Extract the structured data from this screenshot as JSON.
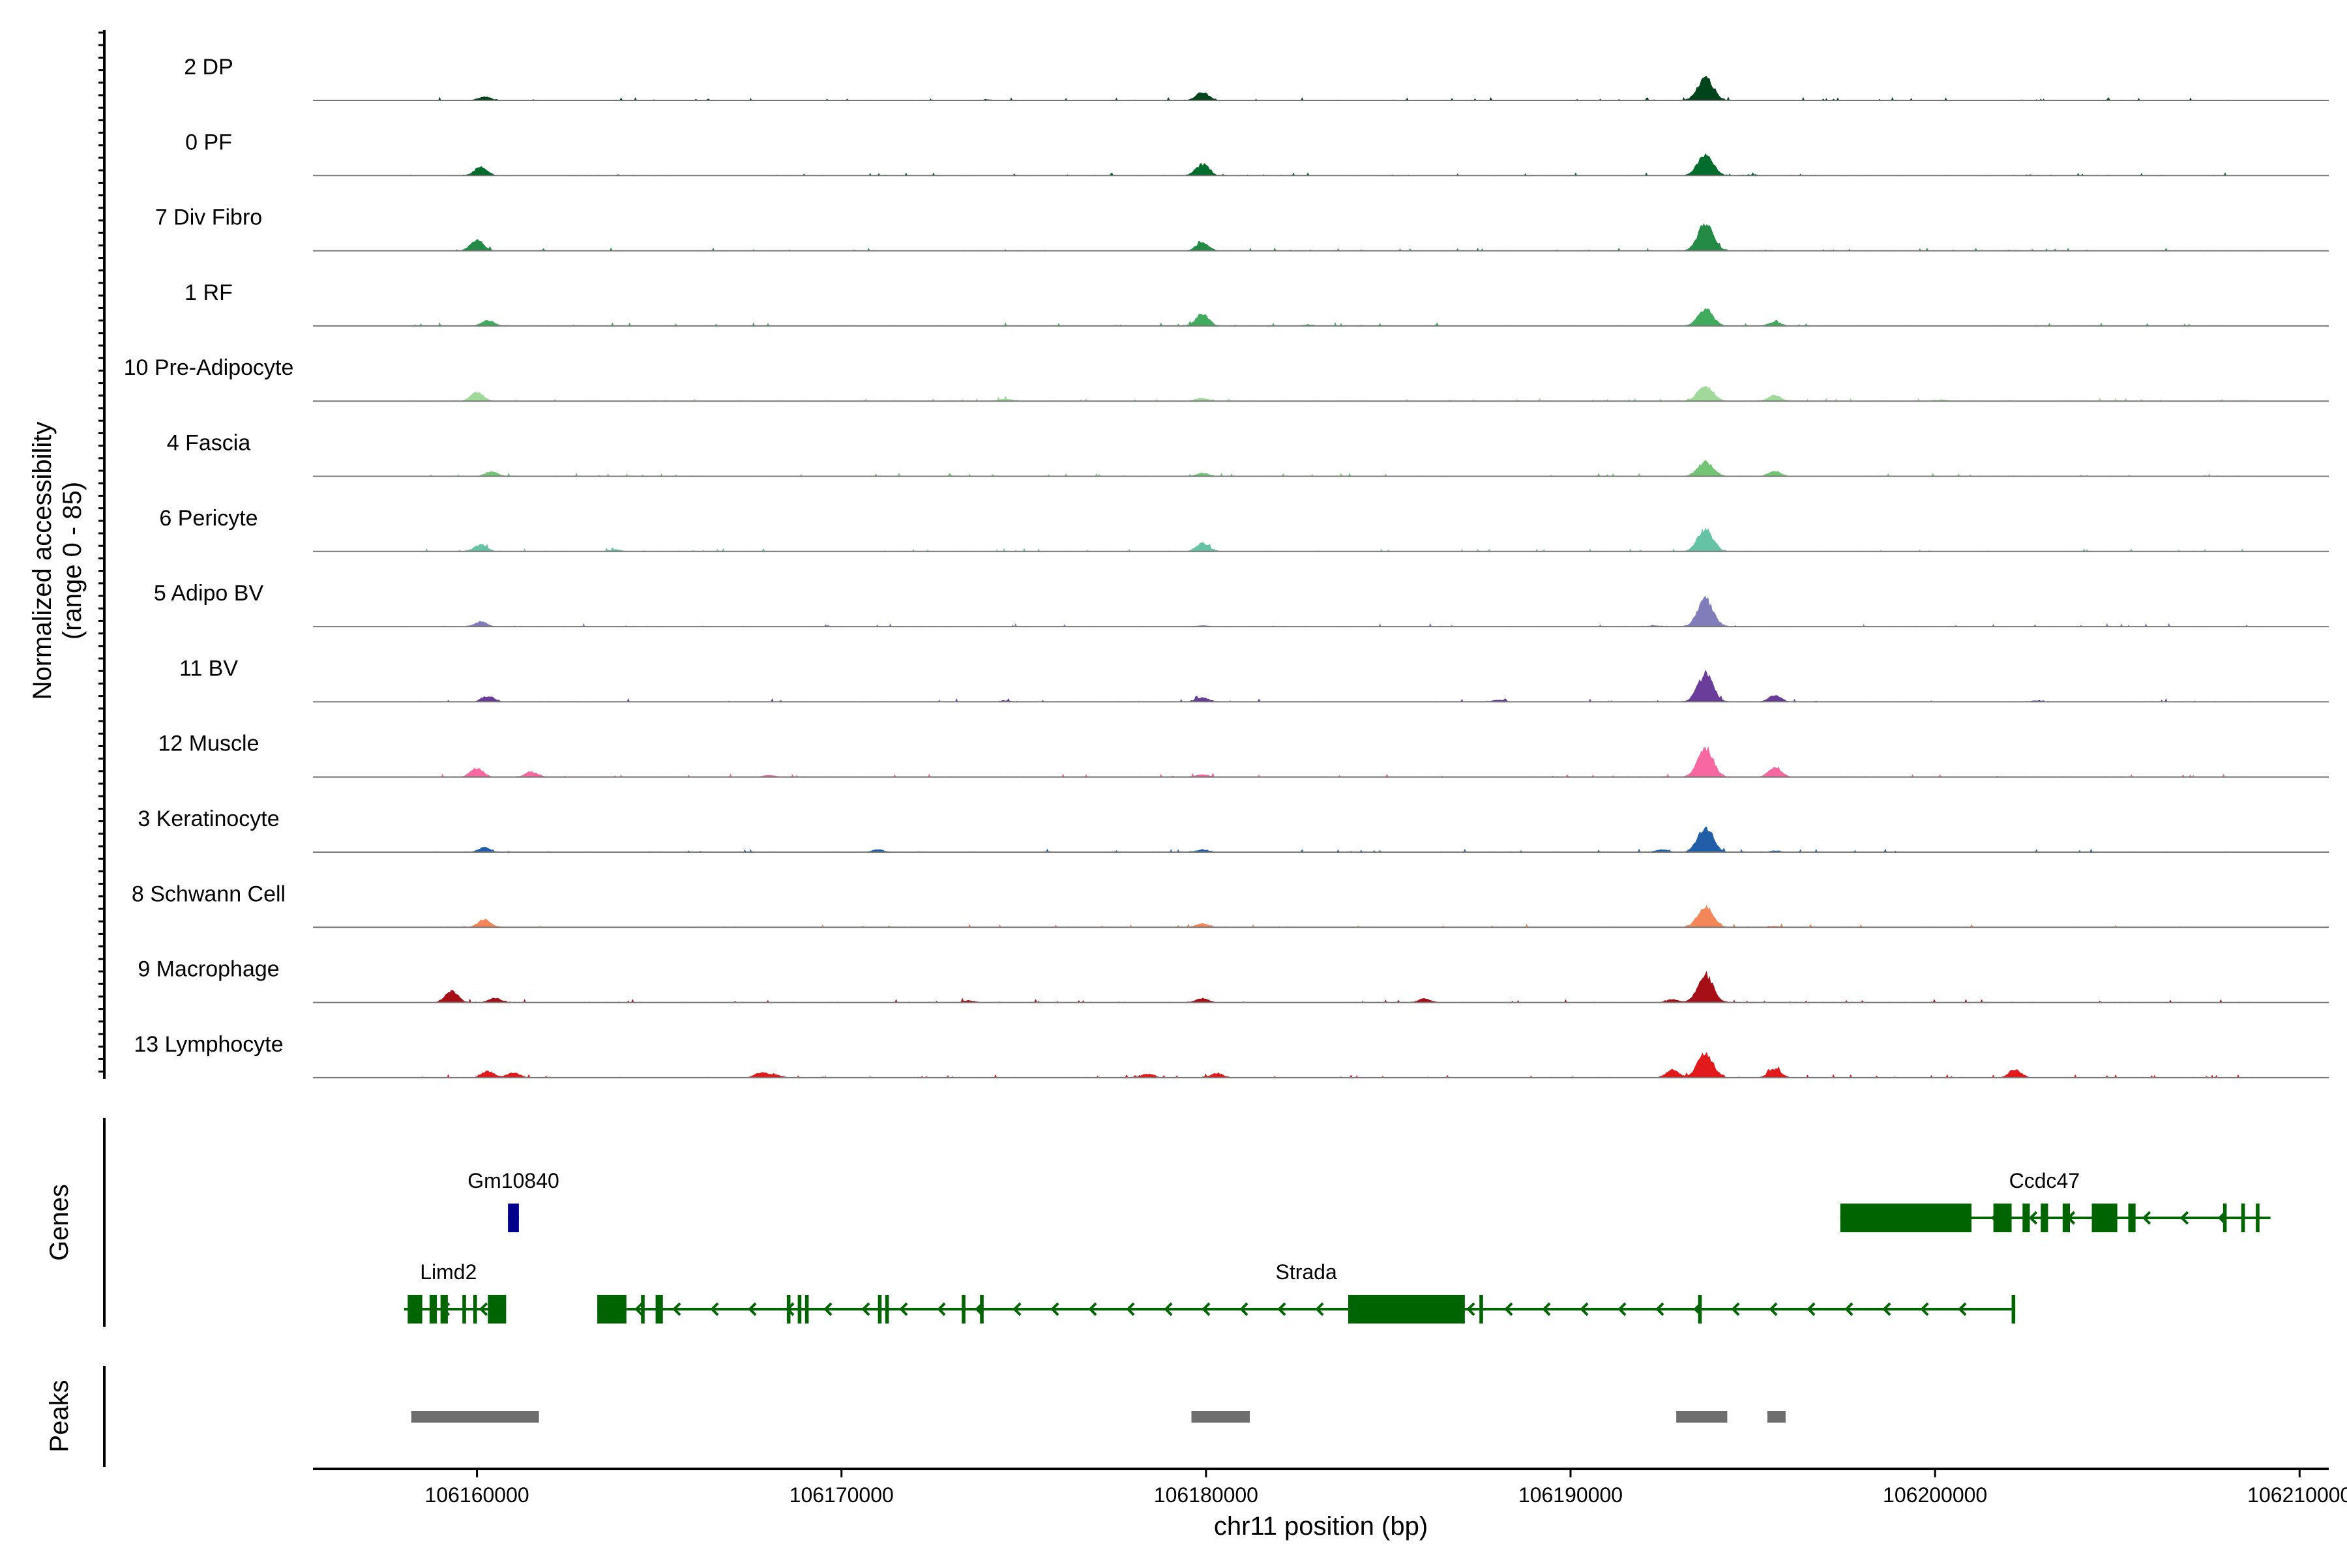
{
  "chart_data": {
    "type": "area",
    "title": "",
    "ylabel_line1": "Normalized accessibility",
    "ylabel_line2": "(range 0 - 85)",
    "ylim": [
      0,
      85
    ],
    "genes_label": "Genes",
    "peaks_label": "Peaks",
    "xlabel": "chr11 position (bp)",
    "xlim": [
      106155500,
      106210800
    ],
    "x_ticks": [
      106160000,
      106170000,
      106180000,
      106190000,
      106200000,
      106210000
    ],
    "x_tick_labels": [
      "106160000",
      "106170000",
      "106180000",
      "106190000",
      "106200000",
      "106210000"
    ],
    "series": [
      {
        "name": "2 DP",
        "color": "#00441b",
        "peaks": [
          [
            106160200,
            6
          ],
          [
            106179900,
            13
          ],
          [
            106193700,
            36
          ],
          [
            106166000,
            1
          ],
          [
            106174000,
            1.5
          ],
          [
            106185000,
            1
          ]
        ]
      },
      {
        "name": "0 PF",
        "color": "#006d2c",
        "peaks": [
          [
            106160100,
            13
          ],
          [
            106179900,
            18
          ],
          [
            106193700,
            34
          ],
          [
            106195000,
            1.5
          ],
          [
            106202500,
            1
          ]
        ]
      },
      {
        "name": "7 Div Fibro",
        "color": "#238b45",
        "peaks": [
          [
            106160000,
            18
          ],
          [
            106179900,
            13
          ],
          [
            106193700,
            42
          ],
          [
            106195300,
            1
          ],
          [
            106202000,
            1
          ]
        ]
      },
      {
        "name": "1 RF",
        "color": "#41ab5d",
        "peaks": [
          [
            106160300,
            9
          ],
          [
            106179900,
            19
          ],
          [
            106193700,
            26
          ],
          [
            106195600,
            6
          ],
          [
            106182800,
            2
          ]
        ]
      },
      {
        "name": "10 Pre-Adipocyte",
        "color": "#a1d99b",
        "peaks": [
          [
            106160000,
            14
          ],
          [
            106179900,
            5
          ],
          [
            106193700,
            24
          ],
          [
            106195600,
            9
          ],
          [
            106174500,
            4
          ],
          [
            106200200,
            2
          ]
        ]
      },
      {
        "name": "4 Fascia",
        "color": "#74c476",
        "peaks": [
          [
            106160400,
            8
          ],
          [
            106179900,
            5
          ],
          [
            106193700,
            23
          ],
          [
            106195600,
            8
          ]
        ]
      },
      {
        "name": "6 Pericyte",
        "color": "#66c2a4",
        "peaks": [
          [
            106160100,
            11
          ],
          [
            106179900,
            13
          ],
          [
            106193700,
            34
          ],
          [
            106163800,
            3
          ]
        ]
      },
      {
        "name": "5 Adipo BV",
        "color": "#807dba",
        "peaks": [
          [
            106160100,
            8
          ],
          [
            106179900,
            2
          ],
          [
            106193700,
            43
          ],
          [
            106192300,
            2
          ]
        ]
      },
      {
        "name": "11 BV",
        "color": "#6a3d9a",
        "peaks": [
          [
            106160300,
            9
          ],
          [
            106179900,
            7
          ],
          [
            106193700,
            43
          ],
          [
            106195600,
            10
          ],
          [
            106188000,
            3
          ],
          [
            106174500,
            2
          ],
          [
            106202800,
            2
          ]
        ]
      },
      {
        "name": "12 Muscle",
        "color": "#f768a1",
        "peaks": [
          [
            106160000,
            14
          ],
          [
            106161500,
            8
          ],
          [
            106179900,
            4
          ],
          [
            106193700,
            46
          ],
          [
            106195600,
            15
          ],
          [
            106168000,
            3
          ]
        ]
      },
      {
        "name": "3 Keratinocyte",
        "color": "#225ea8",
        "peaks": [
          [
            106160200,
            7
          ],
          [
            106171000,
            4
          ],
          [
            106179900,
            4
          ],
          [
            106193700,
            39
          ],
          [
            106192500,
            4
          ],
          [
            106195600,
            2
          ]
        ]
      },
      {
        "name": "8 Schwann Cell",
        "color": "#f4875a",
        "peaks": [
          [
            106160200,
            12
          ],
          [
            106179900,
            6
          ],
          [
            106193700,
            34
          ],
          [
            106195600,
            2
          ]
        ]
      },
      {
        "name": "9 Macrophage",
        "color": "#a50f15",
        "peaks": [
          [
            106159300,
            18
          ],
          [
            106160500,
            7
          ],
          [
            106179900,
            7
          ],
          [
            106193700,
            43
          ],
          [
            106186000,
            6
          ],
          [
            106192800,
            5
          ],
          [
            106173500,
            3
          ]
        ]
      },
      {
        "name": "13 Lymphocyte",
        "color": "#e31a1c",
        "peaks": [
          [
            106160300,
            10
          ],
          [
            106161000,
            8
          ],
          [
            106167800,
            8
          ],
          [
            106193700,
            38
          ],
          [
            106192800,
            12
          ],
          [
            106195600,
            14
          ],
          [
            106202200,
            12
          ],
          [
            106178400,
            6
          ],
          [
            106180300,
            7
          ],
          [
            106168200,
            4
          ]
        ]
      }
    ],
    "genes": [
      {
        "name": "Gm10840",
        "row": 0,
        "color": "#00008b",
        "start": 106160850,
        "end": 106161150,
        "strand": "-",
        "exons": [
          [
            106160850,
            106161150
          ]
        ]
      },
      {
        "name": "Ccdc47",
        "row": 0,
        "color": "#006400",
        "start": 106197400,
        "end": 106209200,
        "strand": "-",
        "exons": [
          [
            106197400,
            106201000
          ],
          [
            106201600,
            106202100
          ],
          [
            106202400,
            106202600
          ],
          [
            106202900,
            106203100
          ],
          [
            106203500,
            106203700
          ],
          [
            106204300,
            106205000
          ],
          [
            106205300,
            106205500
          ],
          [
            106207900,
            106208000
          ],
          [
            106208400,
            106208500
          ],
          [
            106208800,
            106208900
          ]
        ]
      },
      {
        "name": "Limd2",
        "row": 1,
        "color": "#006400",
        "start": 106158000,
        "end": 106160800,
        "strand": "-",
        "exons": [
          [
            106158100,
            106158500
          ],
          [
            106158700,
            106158900
          ],
          [
            106159000,
            106159200
          ],
          [
            106159600,
            106159700
          ],
          [
            106159900,
            106160000
          ],
          [
            106160300,
            106160800
          ]
        ]
      },
      {
        "name": "Strada",
        "row": 1,
        "color": "#006400",
        "start": 106163300,
        "end": 106202200,
        "strand": "-",
        "exons": [
          [
            106163300,
            106164100
          ],
          [
            106164500,
            106164600
          ],
          [
            106164900,
            106165100
          ],
          [
            106168500,
            106168600
          ],
          [
            106168800,
            106168900
          ],
          [
            106169000,
            106169100
          ],
          [
            106171000,
            106171100
          ],
          [
            106171200,
            106171300
          ],
          [
            106173300,
            106173400
          ],
          [
            106173800,
            106173900
          ],
          [
            106183900,
            106187100
          ],
          [
            106187500,
            106187600
          ],
          [
            106193500,
            106193600
          ],
          [
            106202100,
            106202200
          ]
        ]
      }
    ],
    "peak_regions": [
      [
        106158200,
        106161700
      ],
      [
        106179600,
        106181200
      ],
      [
        106192900,
        106194300
      ],
      [
        106195400,
        106195900
      ]
    ]
  }
}
